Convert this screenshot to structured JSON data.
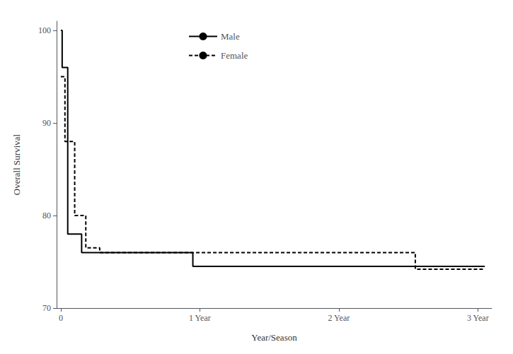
{
  "chart_data": {
    "type": "line",
    "xlabel": "Year/Season",
    "ylabel": "Overall Survival",
    "series": [
      {
        "name": "Male",
        "color": "#000000",
        "line_style": "solid",
        "x": [
          0,
          0.01,
          0.01,
          0.05,
          0.05,
          0.15,
          0.15,
          0.95,
          0.95,
          3.05
        ],
        "values": [
          100,
          100,
          96,
          96,
          78,
          78,
          76,
          76,
          74.5,
          74.5
        ]
      },
      {
        "name": "Female",
        "color": "#000000",
        "line_style": "dashed",
        "x": [
          0,
          0.03,
          0.03,
          0.1,
          0.1,
          0.18,
          0.18,
          0.28,
          0.28,
          2.55,
          2.55,
          3.05
        ],
        "values": [
          95,
          95,
          88,
          88,
          80,
          80,
          76.5,
          76.5,
          76,
          76,
          74.2,
          74.2
        ]
      }
    ],
    "xlim": [
      -0.03,
      3.1
    ],
    "xticks": [
      0,
      {
        "value": 1,
        "label": "1 Year"
      },
      {
        "value": 2,
        "label": "2 Year"
      },
      {
        "value": 3,
        "label": "3 Year"
      }
    ],
    "ylim": [
      70,
      101
    ],
    "yticks": [
      70,
      80,
      90,
      100
    ],
    "grid": false,
    "legend": "top"
  }
}
